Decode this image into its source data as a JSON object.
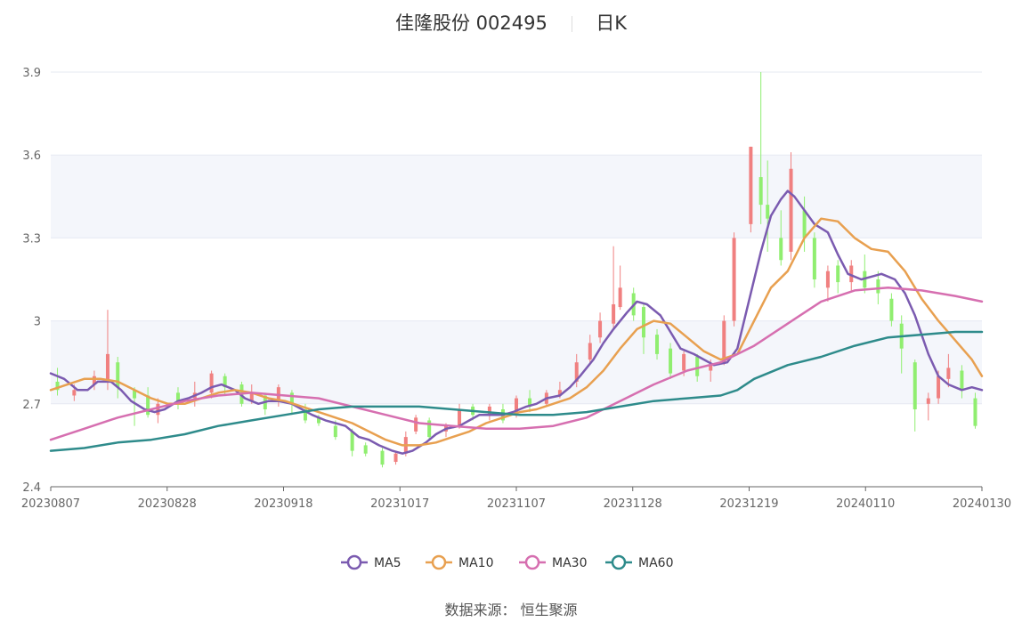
{
  "header": {
    "name": "佳隆股份",
    "code": "002495",
    "period": "日K"
  },
  "footer": {
    "label": "数据来源：",
    "source": "恒生聚源"
  },
  "chart_data": {
    "type": "candlestick",
    "ylim": [
      2.4,
      3.9
    ],
    "yticks": [
      2.4,
      2.7,
      3,
      3.3,
      3.6,
      3.9
    ],
    "xticks": [
      "20230807",
      "20230828",
      "20230918",
      "20231017",
      "20231107",
      "20231128",
      "20231219",
      "20240110",
      "20240130"
    ],
    "grid": true,
    "legend_position": "bottom",
    "colors": {
      "up": "#f08080",
      "down": "#90ee70",
      "MA5": "#7b5bb0",
      "MA10": "#e8a050",
      "MA30": "#d66fb0",
      "MA60": "#2e8b8b",
      "band": "#f4f6fb"
    },
    "series": [
      {
        "name": "MA5",
        "values": [
          [
            0,
            2.81
          ],
          [
            4,
            2.79
          ],
          [
            8,
            2.75
          ],
          [
            11,
            2.75
          ],
          [
            14,
            2.78
          ],
          [
            18,
            2.78
          ],
          [
            21,
            2.75
          ],
          [
            24,
            2.71
          ],
          [
            28,
            2.68
          ],
          [
            31,
            2.67
          ],
          [
            34,
            2.68
          ],
          [
            38,
            2.71
          ],
          [
            41,
            2.72
          ],
          [
            45,
            2.74
          ],
          [
            48,
            2.76
          ],
          [
            51,
            2.77
          ],
          [
            55,
            2.75
          ],
          [
            58,
            2.72
          ],
          [
            62,
            2.7
          ],
          [
            65,
            2.71
          ],
          [
            68,
            2.71
          ],
          [
            72,
            2.7
          ],
          [
            75,
            2.68
          ],
          [
            78,
            2.66
          ],
          [
            82,
            2.64
          ],
          [
            85,
            2.63
          ],
          [
            88,
            2.62
          ],
          [
            92,
            2.58
          ],
          [
            95,
            2.57
          ],
          [
            98,
            2.55
          ],
          [
            102,
            2.53
          ],
          [
            105,
            2.52
          ],
          [
            108,
            2.53
          ],
          [
            112,
            2.56
          ],
          [
            115,
            2.59
          ],
          [
            118,
            2.61
          ],
          [
            122,
            2.62
          ],
          [
            125,
            2.64
          ],
          [
            128,
            2.66
          ],
          [
            132,
            2.66
          ],
          [
            135,
            2.66
          ],
          [
            138,
            2.67
          ],
          [
            142,
            2.69
          ],
          [
            145,
            2.7
          ],
          [
            148,
            2.72
          ],
          [
            152,
            2.73
          ],
          [
            155,
            2.76
          ],
          [
            158,
            2.8
          ],
          [
            162,
            2.86
          ],
          [
            165,
            2.92
          ],
          [
            168,
            2.97
          ],
          [
            172,
            3.03
          ],
          [
            175,
            3.07
          ],
          [
            178,
            3.06
          ],
          [
            182,
            3.02
          ],
          [
            185,
            2.96
          ],
          [
            188,
            2.9
          ],
          [
            192,
            2.88
          ],
          [
            195,
            2.86
          ],
          [
            198,
            2.84
          ],
          [
            202,
            2.85
          ],
          [
            205,
            2.9
          ],
          [
            208,
            3.05
          ],
          [
            212,
            3.25
          ],
          [
            215,
            3.38
          ],
          [
            218,
            3.44
          ],
          [
            220,
            3.47
          ],
          [
            222,
            3.45
          ],
          [
            225,
            3.4
          ],
          [
            228,
            3.35
          ],
          [
            232,
            3.32
          ],
          [
            235,
            3.24
          ],
          [
            238,
            3.17
          ],
          [
            242,
            3.15
          ],
          [
            245,
            3.16
          ],
          [
            248,
            3.17
          ],
          [
            252,
            3.15
          ],
          [
            255,
            3.1
          ],
          [
            258,
            3.02
          ],
          [
            262,
            2.88
          ],
          [
            265,
            2.8
          ],
          [
            268,
            2.77
          ],
          [
            272,
            2.75
          ],
          [
            275,
            2.76
          ],
          [
            278,
            2.75
          ]
        ]
      },
      {
        "name": "MA10",
        "values": [
          [
            0,
            2.75
          ],
          [
            5,
            2.77
          ],
          [
            10,
            2.79
          ],
          [
            15,
            2.79
          ],
          [
            20,
            2.78
          ],
          [
            25,
            2.75
          ],
          [
            30,
            2.72
          ],
          [
            35,
            2.7
          ],
          [
            40,
            2.7
          ],
          [
            45,
            2.72
          ],
          [
            50,
            2.74
          ],
          [
            55,
            2.75
          ],
          [
            60,
            2.74
          ],
          [
            65,
            2.72
          ],
          [
            70,
            2.71
          ],
          [
            75,
            2.69
          ],
          [
            80,
            2.67
          ],
          [
            85,
            2.65
          ],
          [
            90,
            2.63
          ],
          [
            95,
            2.6
          ],
          [
            100,
            2.57
          ],
          [
            105,
            2.55
          ],
          [
            110,
            2.55
          ],
          [
            115,
            2.56
          ],
          [
            120,
            2.58
          ],
          [
            125,
            2.6
          ],
          [
            130,
            2.63
          ],
          [
            135,
            2.65
          ],
          [
            140,
            2.67
          ],
          [
            145,
            2.68
          ],
          [
            150,
            2.7
          ],
          [
            155,
            2.72
          ],
          [
            160,
            2.76
          ],
          [
            165,
            2.82
          ],
          [
            170,
            2.9
          ],
          [
            175,
            2.97
          ],
          [
            180,
            3.0
          ],
          [
            185,
            2.99
          ],
          [
            190,
            2.94
          ],
          [
            195,
            2.89
          ],
          [
            200,
            2.86
          ],
          [
            205,
            2.88
          ],
          [
            210,
            3.0
          ],
          [
            215,
            3.12
          ],
          [
            220,
            3.18
          ],
          [
            225,
            3.3
          ],
          [
            230,
            3.37
          ],
          [
            235,
            3.36
          ],
          [
            240,
            3.3
          ],
          [
            245,
            3.26
          ],
          [
            250,
            3.25
          ],
          [
            255,
            3.18
          ],
          [
            260,
            3.08
          ],
          [
            265,
            3.0
          ],
          [
            270,
            2.93
          ],
          [
            275,
            2.86
          ],
          [
            278,
            2.8
          ]
        ]
      },
      {
        "name": "MA30",
        "values": [
          [
            0,
            2.57
          ],
          [
            10,
            2.61
          ],
          [
            20,
            2.65
          ],
          [
            30,
            2.68
          ],
          [
            40,
            2.71
          ],
          [
            50,
            2.73
          ],
          [
            60,
            2.74
          ],
          [
            70,
            2.73
          ],
          [
            80,
            2.72
          ],
          [
            90,
            2.69
          ],
          [
            100,
            2.66
          ],
          [
            110,
            2.63
          ],
          [
            120,
            2.62
          ],
          [
            130,
            2.61
          ],
          [
            140,
            2.61
          ],
          [
            150,
            2.62
          ],
          [
            160,
            2.65
          ],
          [
            170,
            2.71
          ],
          [
            180,
            2.77
          ],
          [
            190,
            2.82
          ],
          [
            200,
            2.85
          ],
          [
            210,
            2.91
          ],
          [
            220,
            2.99
          ],
          [
            230,
            3.07
          ],
          [
            240,
            3.11
          ],
          [
            250,
            3.12
          ],
          [
            260,
            3.11
          ],
          [
            270,
            3.09
          ],
          [
            278,
            3.07
          ]
        ]
      },
      {
        "name": "MA60",
        "values": [
          [
            0,
            2.53
          ],
          [
            10,
            2.54
          ],
          [
            20,
            2.56
          ],
          [
            30,
            2.57
          ],
          [
            40,
            2.59
          ],
          [
            50,
            2.62
          ],
          [
            60,
            2.64
          ],
          [
            70,
            2.66
          ],
          [
            80,
            2.68
          ],
          [
            90,
            2.69
          ],
          [
            100,
            2.69
          ],
          [
            110,
            2.69
          ],
          [
            120,
            2.68
          ],
          [
            130,
            2.67
          ],
          [
            140,
            2.66
          ],
          [
            150,
            2.66
          ],
          [
            160,
            2.67
          ],
          [
            170,
            2.69
          ],
          [
            180,
            2.71
          ],
          [
            190,
            2.72
          ],
          [
            200,
            2.73
          ],
          [
            205,
            2.75
          ],
          [
            210,
            2.79
          ],
          [
            220,
            2.84
          ],
          [
            230,
            2.87
          ],
          [
            240,
            2.91
          ],
          [
            250,
            2.94
          ],
          [
            260,
            2.95
          ],
          [
            270,
            2.96
          ],
          [
            278,
            2.96
          ]
        ]
      }
    ],
    "candles": [
      [
        2,
        2.78,
        2.75,
        2.83,
        2.73
      ],
      [
        7,
        2.73,
        2.75,
        2.77,
        2.71
      ],
      [
        13,
        2.77,
        2.8,
        2.82,
        2.75
      ],
      [
        17,
        2.78,
        2.88,
        3.04,
        2.75
      ],
      [
        20,
        2.85,
        2.76,
        2.87,
        2.72
      ],
      [
        25,
        2.75,
        2.72,
        2.76,
        2.62
      ],
      [
        29,
        2.73,
        2.66,
        2.76,
        2.65
      ],
      [
        32,
        2.66,
        2.7,
        2.72,
        2.63
      ],
      [
        38,
        2.74,
        2.71,
        2.76,
        2.68
      ],
      [
        43,
        2.72,
        2.74,
        2.78,
        2.69
      ],
      [
        48,
        2.74,
        2.81,
        2.82,
        2.72
      ],
      [
        52,
        2.8,
        2.76,
        2.81,
        2.73
      ],
      [
        57,
        2.77,
        2.7,
        2.78,
        2.69
      ],
      [
        60,
        2.71,
        2.74,
        2.77,
        2.7
      ],
      [
        64,
        2.73,
        2.68,
        2.74,
        2.66
      ],
      [
        68,
        2.71,
        2.76,
        2.77,
        2.69
      ],
      [
        72,
        2.74,
        2.7,
        2.75,
        2.66
      ],
      [
        76,
        2.68,
        2.64,
        2.7,
        2.63
      ],
      [
        80,
        2.65,
        2.63,
        2.66,
        2.62
      ],
      [
        85,
        2.62,
        2.58,
        2.64,
        2.57
      ],
      [
        90,
        2.6,
        2.53,
        2.61,
        2.51
      ],
      [
        94,
        2.55,
        2.52,
        2.56,
        2.51
      ],
      [
        99,
        2.53,
        2.48,
        2.54,
        2.47
      ],
      [
        103,
        2.49,
        2.52,
        2.53,
        2.48
      ],
      [
        106,
        2.52,
        2.58,
        2.6,
        2.51
      ],
      [
        109,
        2.6,
        2.65,
        2.66,
        2.59
      ],
      [
        113,
        2.64,
        2.58,
        2.65,
        2.57
      ],
      [
        118,
        2.6,
        2.62,
        2.63,
        2.58
      ],
      [
        122,
        2.62,
        2.68,
        2.7,
        2.61
      ],
      [
        126,
        2.69,
        2.66,
        2.7,
        2.64
      ],
      [
        131,
        2.66,
        2.69,
        2.7,
        2.64
      ],
      [
        135,
        2.68,
        2.64,
        2.7,
        2.63
      ],
      [
        139,
        2.66,
        2.72,
        2.73,
        2.65
      ],
      [
        143,
        2.72,
        2.69,
        2.75,
        2.67
      ],
      [
        148,
        2.7,
        2.74,
        2.75,
        2.69
      ],
      [
        152,
        2.73,
        2.75,
        2.78,
        2.72
      ],
      [
        157,
        2.78,
        2.85,
        2.88,
        2.76
      ],
      [
        161,
        2.86,
        2.92,
        2.95,
        2.84
      ],
      [
        164,
        2.94,
        3.0,
        3.03,
        2.92
      ],
      [
        168,
        2.99,
        3.06,
        3.27,
        2.97
      ],
      [
        170,
        3.05,
        3.12,
        3.2,
        3.04
      ],
      [
        174,
        3.1,
        3.02,
        3.12,
        3.0
      ],
      [
        177,
        3.05,
        2.94,
        3.06,
        2.88
      ],
      [
        181,
        2.95,
        2.88,
        2.97,
        2.86
      ],
      [
        185,
        2.9,
        2.81,
        2.92,
        2.79
      ],
      [
        189,
        2.82,
        2.88,
        2.89,
        2.8
      ],
      [
        193,
        2.87,
        2.8,
        2.88,
        2.78
      ],
      [
        197,
        2.82,
        2.84,
        2.86,
        2.78
      ],
      [
        201,
        2.85,
        3.0,
        3.02,
        2.84
      ],
      [
        204,
        3.0,
        3.3,
        3.32,
        2.98
      ],
      [
        209,
        3.35,
        3.63,
        3.63,
        3.32
      ],
      [
        212,
        3.52,
        3.42,
        3.9,
        3.35
      ],
      [
        214,
        3.42,
        3.37,
        3.58,
        3.25
      ],
      [
        218,
        3.3,
        3.22,
        3.4,
        3.2
      ],
      [
        221,
        3.25,
        3.55,
        3.61,
        3.22
      ],
      [
        225,
        3.4,
        3.3,
        3.45,
        3.25
      ],
      [
        228,
        3.3,
        3.15,
        3.32,
        3.12
      ],
      [
        232,
        3.12,
        3.18,
        3.2,
        3.07
      ],
      [
        235,
        3.2,
        3.14,
        3.22,
        3.1
      ],
      [
        239,
        3.14,
        3.2,
        3.22,
        3.11
      ],
      [
        243,
        3.18,
        3.12,
        3.24,
        3.1
      ],
      [
        247,
        3.15,
        3.1,
        3.18,
        3.06
      ],
      [
        251,
        3.08,
        3.0,
        3.1,
        2.98
      ],
      [
        254,
        2.99,
        2.9,
        3.02,
        2.81
      ],
      [
        258,
        2.85,
        2.68,
        2.86,
        2.6
      ],
      [
        262,
        2.7,
        2.72,
        2.74,
        2.64
      ],
      [
        265,
        2.72,
        2.8,
        2.82,
        2.7
      ],
      [
        268,
        2.79,
        2.83,
        2.88,
        2.76
      ],
      [
        272,
        2.82,
        2.75,
        2.84,
        2.72
      ],
      [
        276,
        2.72,
        2.62,
        2.74,
        2.61
      ]
    ]
  }
}
